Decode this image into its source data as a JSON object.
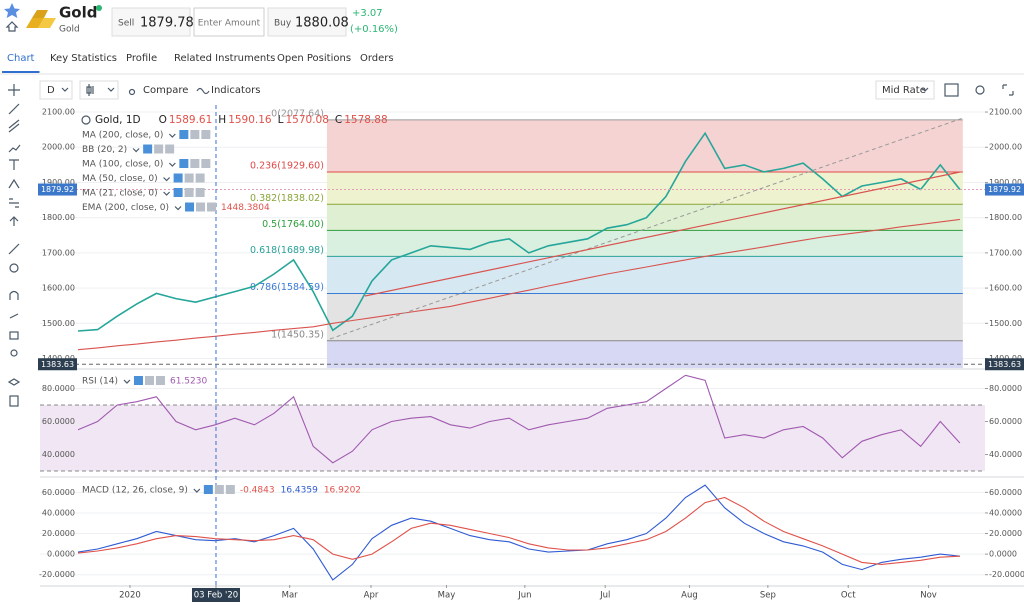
{
  "header": {
    "name": "Gold",
    "sub": "Gold",
    "sell_label": "Sell",
    "sell": 1879.78,
    "amount_placeholder": "Enter Amount",
    "buy_label": "Buy",
    "buy": 1880.08,
    "change": "+3.07",
    "change_pct": "(+0.16%)"
  },
  "tabs": [
    "Chart",
    "Key Statistics",
    "Profile",
    "Related Instruments",
    "Open Positions",
    "Orders"
  ],
  "toolbar": {
    "interval": "D",
    "compare": "Compare",
    "indicators": "Indicators",
    "rate": "Mid Rate"
  },
  "chart_data": [
    {
      "type": "line",
      "title": "Gold, 1D",
      "ohlc": [
        {
          "label": "O",
          "value": 1589.61
        },
        {
          "label": "H",
          "value": 1590.16
        },
        {
          "label": "L",
          "value": 1570.08
        },
        {
          "label": "C",
          "value": 1578.88
        }
      ],
      "indicators": [
        {
          "name": "MA (200, close, 0)"
        },
        {
          "name": "BB (20, 2)"
        },
        {
          "name": "MA (100, close, 0)"
        },
        {
          "name": "MA (50, close, 0)"
        },
        {
          "name": "MA (21, close, 0)"
        },
        {
          "name": "EMA (200, close, 0)",
          "value": 1448.3804
        }
      ],
      "x": [
        0,
        1,
        2,
        3,
        4,
        5,
        6,
        7,
        8,
        9,
        10,
        11,
        12,
        13,
        14,
        15,
        16,
        17,
        18,
        19,
        20,
        21,
        22,
        23,
        24,
        25,
        26,
        27,
        28,
        29,
        30,
        31,
        32,
        33,
        34,
        35,
        36,
        37,
        38,
        39,
        40,
        41,
        42,
        43,
        44,
        45
      ],
      "xlim": [
        -1.94,
        46.28
      ],
      "xticks": [
        {
          "value": 2.65,
          "label": "2020"
        },
        {
          "value": 7.04,
          "label": "03 Feb '20",
          "highlight": true
        },
        {
          "value": 10.8,
          "label": "Mar"
        },
        {
          "value": 14.95,
          "label": "Apr"
        },
        {
          "value": 18.8,
          "label": "May"
        },
        {
          "value": 22.8,
          "label": "Jun"
        },
        {
          "value": 26.9,
          "label": "Jul"
        },
        {
          "value": 31.2,
          "label": "Aug"
        },
        {
          "value": 35.2,
          "label": "Sep"
        },
        {
          "value": 39.3,
          "label": "Oct"
        },
        {
          "value": 43.4,
          "label": "Nov"
        }
      ],
      "ylim": [
        1373,
        2120
      ],
      "yticks": [
        {
          "value": 1400,
          "label": "1400.00"
        },
        {
          "value": 1500,
          "label": "1500.00"
        },
        {
          "value": 1600,
          "label": "1600.00"
        },
        {
          "value": 1700,
          "label": "1700.00"
        },
        {
          "value": 1800,
          "label": "1800.00"
        },
        {
          "value": 1900,
          "label": "1900.00"
        },
        {
          "value": 2000,
          "label": "2000.00"
        },
        {
          "value": 2100,
          "label": "2100.00"
        }
      ],
      "grid": true,
      "series": [
        {
          "color": "#26a69a",
          "values": [
            1478,
            1482,
            1520,
            1555,
            1585,
            1570,
            1560,
            1575,
            1590,
            1605,
            1640,
            1680,
            1590,
            1480,
            1520,
            1620,
            1680,
            1700,
            1720,
            1715,
            1710,
            1730,
            1740,
            1700,
            1720,
            1730,
            1740,
            1770,
            1780,
            1800,
            1860,
            1960,
            2040,
            1940,
            1950,
            1930,
            1940,
            1955,
            1910,
            1860,
            1890,
            1900,
            1910,
            1880,
            1950,
            1880
          ]
        },
        {
          "color": "#d9534f",
          "values": [
            1425,
            1430,
            1436,
            1441,
            1447,
            1452,
            1458,
            1463,
            1469,
            1474,
            1480,
            1485,
            1490,
            1500,
            1508,
            1516,
            1524,
            1532,
            1540,
            1548,
            1560,
            1571,
            1583,
            1594,
            1606,
            1617,
            1629,
            1640,
            1650,
            1660,
            1670,
            1680,
            1690,
            1699,
            1708,
            1717,
            1727,
            1736,
            1745,
            1752,
            1759,
            1766,
            1774,
            1781,
            1788,
            1795
          ]
        }
      ],
      "fib": {
        "x_range": [
          12.7,
          45.15
        ],
        "levels": [
          {
            "value": 2077.64,
            "label": "0(2077.64)",
            "color": "#f6d3d3",
            "line_color": "#999999"
          },
          {
            "value": 1929.6,
            "label": "0.236(1929.60)",
            "color": "#eef2cf",
            "line_color": "#e04848"
          },
          {
            "value": 1838.02,
            "label": "0.382(1838.02)",
            "color": "#dff0d2",
            "line_color": "#8aa53a"
          },
          {
            "value": 1764,
            "label": "0.5(1764.00)",
            "color": "#d9efe0",
            "line_color": "#2e9e3e"
          },
          {
            "value": 1689.98,
            "label": "0.618(1689.98)",
            "color": "#d6e9f3",
            "line_color": "#2aa198"
          },
          {
            "value": 1584.59,
            "label": "0.786(1584.59)",
            "color": "#e3e3e3",
            "line_color": "#3a7bd5"
          },
          {
            "value": 1450.35,
            "label": "1(1450.35)",
            "color": "#d7d8f3",
            "line_color": "#888888"
          }
        ]
      },
      "last_price": {
        "value": 1879.92,
        "color": "#3b78c9"
      },
      "low_marker": {
        "value": 1383.63,
        "color": "#2d3e50"
      }
    },
    {
      "type": "line",
      "title": "RSI (14)",
      "readout": {
        "value": 61.523,
        "label": "61.5230"
      },
      "ylim": [
        27,
        90
      ],
      "yticks": [
        {
          "value": 40,
          "label": "40.0000"
        },
        {
          "value": 60,
          "label": "60.0000"
        },
        {
          "value": 80,
          "label": "80.0000"
        }
      ],
      "band": [
        30,
        70
      ],
      "series": [
        {
          "color": "#a05ab0",
          "values": [
            55,
            60,
            70,
            72,
            75,
            60,
            55,
            58,
            62,
            58,
            65,
            75,
            45,
            35,
            42,
            55,
            60,
            62,
            63,
            58,
            56,
            60,
            62,
            55,
            58,
            60,
            62,
            68,
            70,
            72,
            80,
            88,
            85,
            50,
            52,
            50,
            55,
            57,
            50,
            38,
            48,
            52,
            55,
            45,
            60,
            47
          ]
        }
      ]
    },
    {
      "type": "line",
      "title": "MACD (12, 26, close, 9)",
      "readouts": [
        {
          "value": -0.4843,
          "color": "#e0524a"
        },
        {
          "value": 16.4359,
          "color": "#2f5bd3"
        },
        {
          "value": 16.9202,
          "color": "#e0524a"
        }
      ],
      "ylim": [
        -30,
        72
      ],
      "yticks": [
        {
          "value": -20,
          "label": "-20.0000"
        },
        {
          "value": 0,
          "label": "0.0000"
        },
        {
          "value": 20,
          "label": "20.0000"
        },
        {
          "value": 40,
          "label": "40.0000"
        },
        {
          "value": 60,
          "label": "60.0000"
        }
      ],
      "series": [
        {
          "color": "#2f5bd3",
          "values": [
            2,
            5,
            10,
            15,
            22,
            18,
            14,
            13,
            15,
            12,
            18,
            25,
            5,
            -25,
            -10,
            15,
            28,
            35,
            32,
            25,
            18,
            14,
            12,
            5,
            2,
            3,
            4,
            10,
            14,
            20,
            35,
            55,
            67,
            45,
            30,
            20,
            12,
            8,
            2,
            -10,
            -15,
            -8,
            -5,
            -3,
            0,
            -2
          ]
        },
        {
          "color": "#e0524a",
          "values": [
            1,
            3,
            6,
            10,
            15,
            18,
            17,
            15,
            14,
            13,
            14,
            18,
            14,
            0,
            -5,
            0,
            12,
            25,
            30,
            28,
            24,
            20,
            16,
            10,
            6,
            4,
            4,
            6,
            10,
            14,
            22,
            35,
            50,
            55,
            45,
            32,
            22,
            15,
            8,
            0,
            -8,
            -10,
            -8,
            -6,
            -3,
            -2
          ]
        }
      ]
    }
  ]
}
